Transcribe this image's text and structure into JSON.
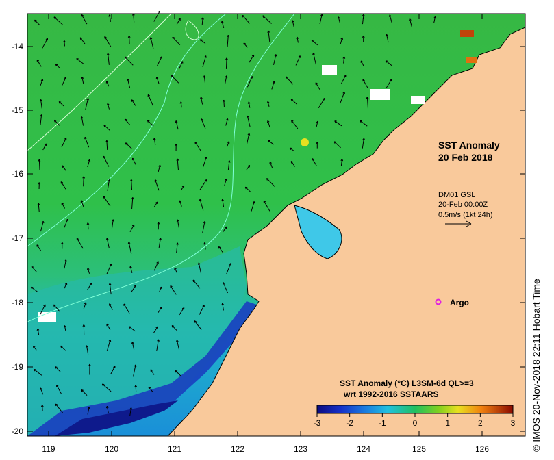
{
  "map": {
    "title_line1": "SST Anomaly",
    "title_line2": "20 Feb 2018",
    "current_source": "DM01 GSL",
    "current_time": "20-Feb 00:00Z",
    "current_scale": "0.5m/s (1kt 24h)",
    "argo_label": "Argo",
    "credit": "© IMOS 20-Nov-2018 22:11 Hobart Time",
    "x_ticks": [
      "119",
      "120",
      "121",
      "122",
      "123",
      "124",
      "125",
      "126"
    ],
    "y_ticks": [
      "-14",
      "-15",
      "-16",
      "-17",
      "-18",
      "-19",
      "-20"
    ],
    "colorbar": {
      "title_line1": "SST Anomaly (°C) L3SM-6d QL>=3",
      "title_line2": "wrt 1992-2016 SSTAARS",
      "ticks": [
        "-3",
        "-2",
        "-1",
        "0",
        "1",
        "2",
        "3"
      ],
      "min": -3,
      "max": 3
    },
    "colors": {
      "land": "#f9c99b",
      "ocean_offshore": "#2fb84a",
      "ocean_shelf": "#1ec0b4",
      "ocean_cold": "#1a2ea6",
      "argo_marker": "#e020e0"
    }
  }
}
